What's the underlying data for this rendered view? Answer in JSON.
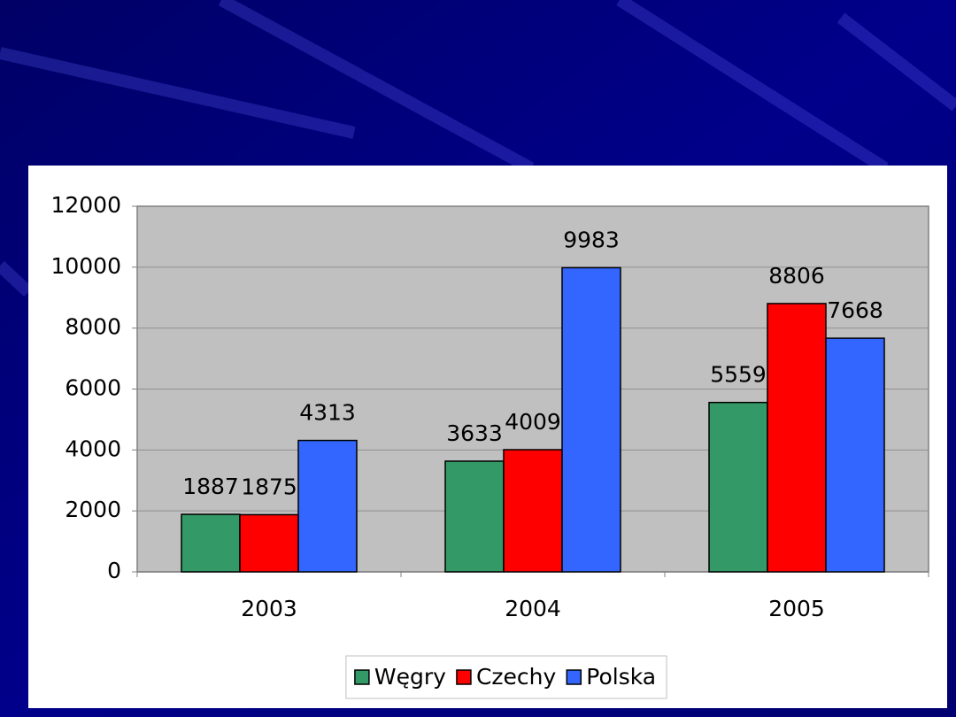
{
  "chart_data": {
    "type": "bar",
    "categories": [
      "2003",
      "2004",
      "2005"
    ],
    "series": [
      {
        "name": "Węgry",
        "color": "#339966",
        "values": [
          1887,
          3633,
          5559
        ]
      },
      {
        "name": "Czechy",
        "color": "#ff0000",
        "values": [
          1875,
          4009,
          8806
        ]
      },
      {
        "name": "Polska",
        "color": "#3366ff",
        "values": [
          4313,
          9983,
          7668
        ]
      }
    ],
    "ylim": [
      0,
      12000
    ],
    "yticks": [
      0,
      2000,
      4000,
      6000,
      8000,
      10000,
      12000
    ],
    "grid": true,
    "legend": "bottom"
  }
}
